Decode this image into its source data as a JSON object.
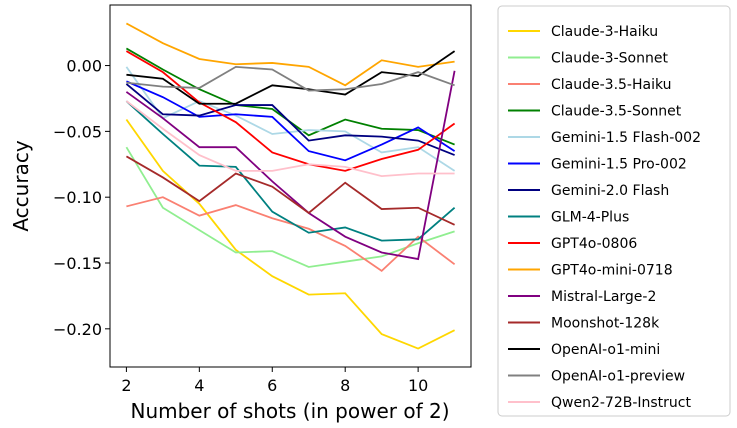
{
  "chart_data": {
    "type": "line",
    "x_label": "Number of shots (in power of 2)",
    "y_label": "Accuracy",
    "x": [
      2,
      3,
      4,
      5,
      6,
      7,
      8,
      9,
      10,
      11
    ],
    "xlim": [
      1.55,
      11.45
    ],
    "ylim": [
      -0.229,
      0.046
    ],
    "xticks": [
      2,
      4,
      6,
      8,
      10
    ],
    "yticks": [
      {
        "value": 0,
        "label": "0.00"
      },
      {
        "value": -0.05,
        "label": "−0.05"
      },
      {
        "value": -0.1,
        "label": "−0.10"
      },
      {
        "value": -0.15,
        "label": "−0.15"
      },
      {
        "value": -0.2,
        "label": "−0.20"
      }
    ],
    "grid": false,
    "legend": "outside right",
    "series": [
      {
        "name": "Claude-3-Haiku",
        "color": "#ffd700",
        "values": [
          -0.041,
          -0.08,
          -0.105,
          -0.14,
          -0.16,
          -0.174,
          -0.173,
          -0.204,
          -0.215,
          -0.201
        ]
      },
      {
        "name": "Claude-3-Sonnet",
        "color": "#90ee90",
        "values": [
          -0.062,
          -0.108,
          -0.125,
          -0.142,
          -0.141,
          -0.153,
          -0.149,
          -0.145,
          -0.135,
          -0.126
        ]
      },
      {
        "name": "Claude-3.5-Haiku",
        "color": "#fa8072",
        "values": [
          -0.107,
          -0.1,
          -0.114,
          -0.106,
          -0.116,
          -0.124,
          -0.137,
          -0.156,
          -0.13,
          -0.151
        ]
      },
      {
        "name": "Claude-3.5-Sonnet",
        "color": "#008000",
        "values": [
          0.013,
          -0.003,
          -0.018,
          -0.03,
          -0.033,
          -0.053,
          -0.041,
          -0.048,
          -0.049,
          -0.06
        ]
      },
      {
        "name": "Gemini-1.5 Flash-002",
        "color": "#add8e6",
        "values": [
          -0.001,
          -0.04,
          -0.027,
          -0.038,
          -0.052,
          -0.049,
          -0.05,
          -0.066,
          -0.062,
          -0.08
        ]
      },
      {
        "name": "Gemini-1.5 Pro-002",
        "color": "#0000ff",
        "values": [
          -0.012,
          -0.024,
          -0.039,
          -0.037,
          -0.039,
          -0.065,
          -0.072,
          -0.06,
          -0.047,
          -0.065
        ]
      },
      {
        "name": "Gemini-2.0 Flash",
        "color": "#000080",
        "values": [
          -0.014,
          -0.037,
          -0.038,
          -0.03,
          -0.03,
          -0.057,
          -0.053,
          -0.054,
          -0.057,
          -0.068
        ]
      },
      {
        "name": "GLM-4-Plus",
        "color": "#008080",
        "values": [
          -0.027,
          -0.052,
          -0.076,
          -0.077,
          -0.111,
          -0.127,
          -0.123,
          -0.133,
          -0.132,
          -0.108
        ]
      },
      {
        "name": "GPT4o-0806",
        "color": "#ff0000",
        "values": [
          0.011,
          -0.005,
          -0.028,
          -0.043,
          -0.066,
          -0.075,
          -0.08,
          -0.071,
          -0.064,
          -0.044
        ]
      },
      {
        "name": "GPT4o-mini-0718",
        "color": "#ffa500",
        "values": [
          0.032,
          0.017,
          0.005,
          0.001,
          0.002,
          -0.001,
          -0.015,
          0.004,
          -0.001,
          0.003
        ]
      },
      {
        "name": "Mistral-Large-2",
        "color": "#800080",
        "values": [
          -0.02,
          -0.04,
          -0.062,
          -0.062,
          -0.088,
          -0.112,
          -0.13,
          -0.142,
          -0.147,
          -0.004
        ]
      },
      {
        "name": "Moonshot-128k",
        "color": "#a52a2a",
        "values": [
          -0.069,
          -0.085,
          -0.103,
          -0.082,
          -0.092,
          -0.112,
          -0.089,
          -0.109,
          -0.108,
          -0.121
        ]
      },
      {
        "name": "OpenAI-o1-mini",
        "color": "#000000",
        "values": [
          -0.007,
          -0.01,
          -0.029,
          -0.029,
          -0.015,
          -0.018,
          -0.022,
          -0.005,
          -0.008,
          0.011
        ]
      },
      {
        "name": "OpenAI-o1-preview",
        "color": "#808080",
        "values": [
          -0.013,
          -0.016,
          -0.017,
          -0.001,
          -0.003,
          -0.019,
          -0.018,
          -0.014,
          -0.005,
          -0.015
        ]
      },
      {
        "name": "Qwen2-72B-Instruct",
        "color": "#ffc0cb",
        "values": [
          -0.027,
          -0.048,
          -0.068,
          -0.08,
          -0.08,
          -0.075,
          -0.077,
          -0.084,
          -0.082,
          -0.082
        ]
      }
    ]
  }
}
